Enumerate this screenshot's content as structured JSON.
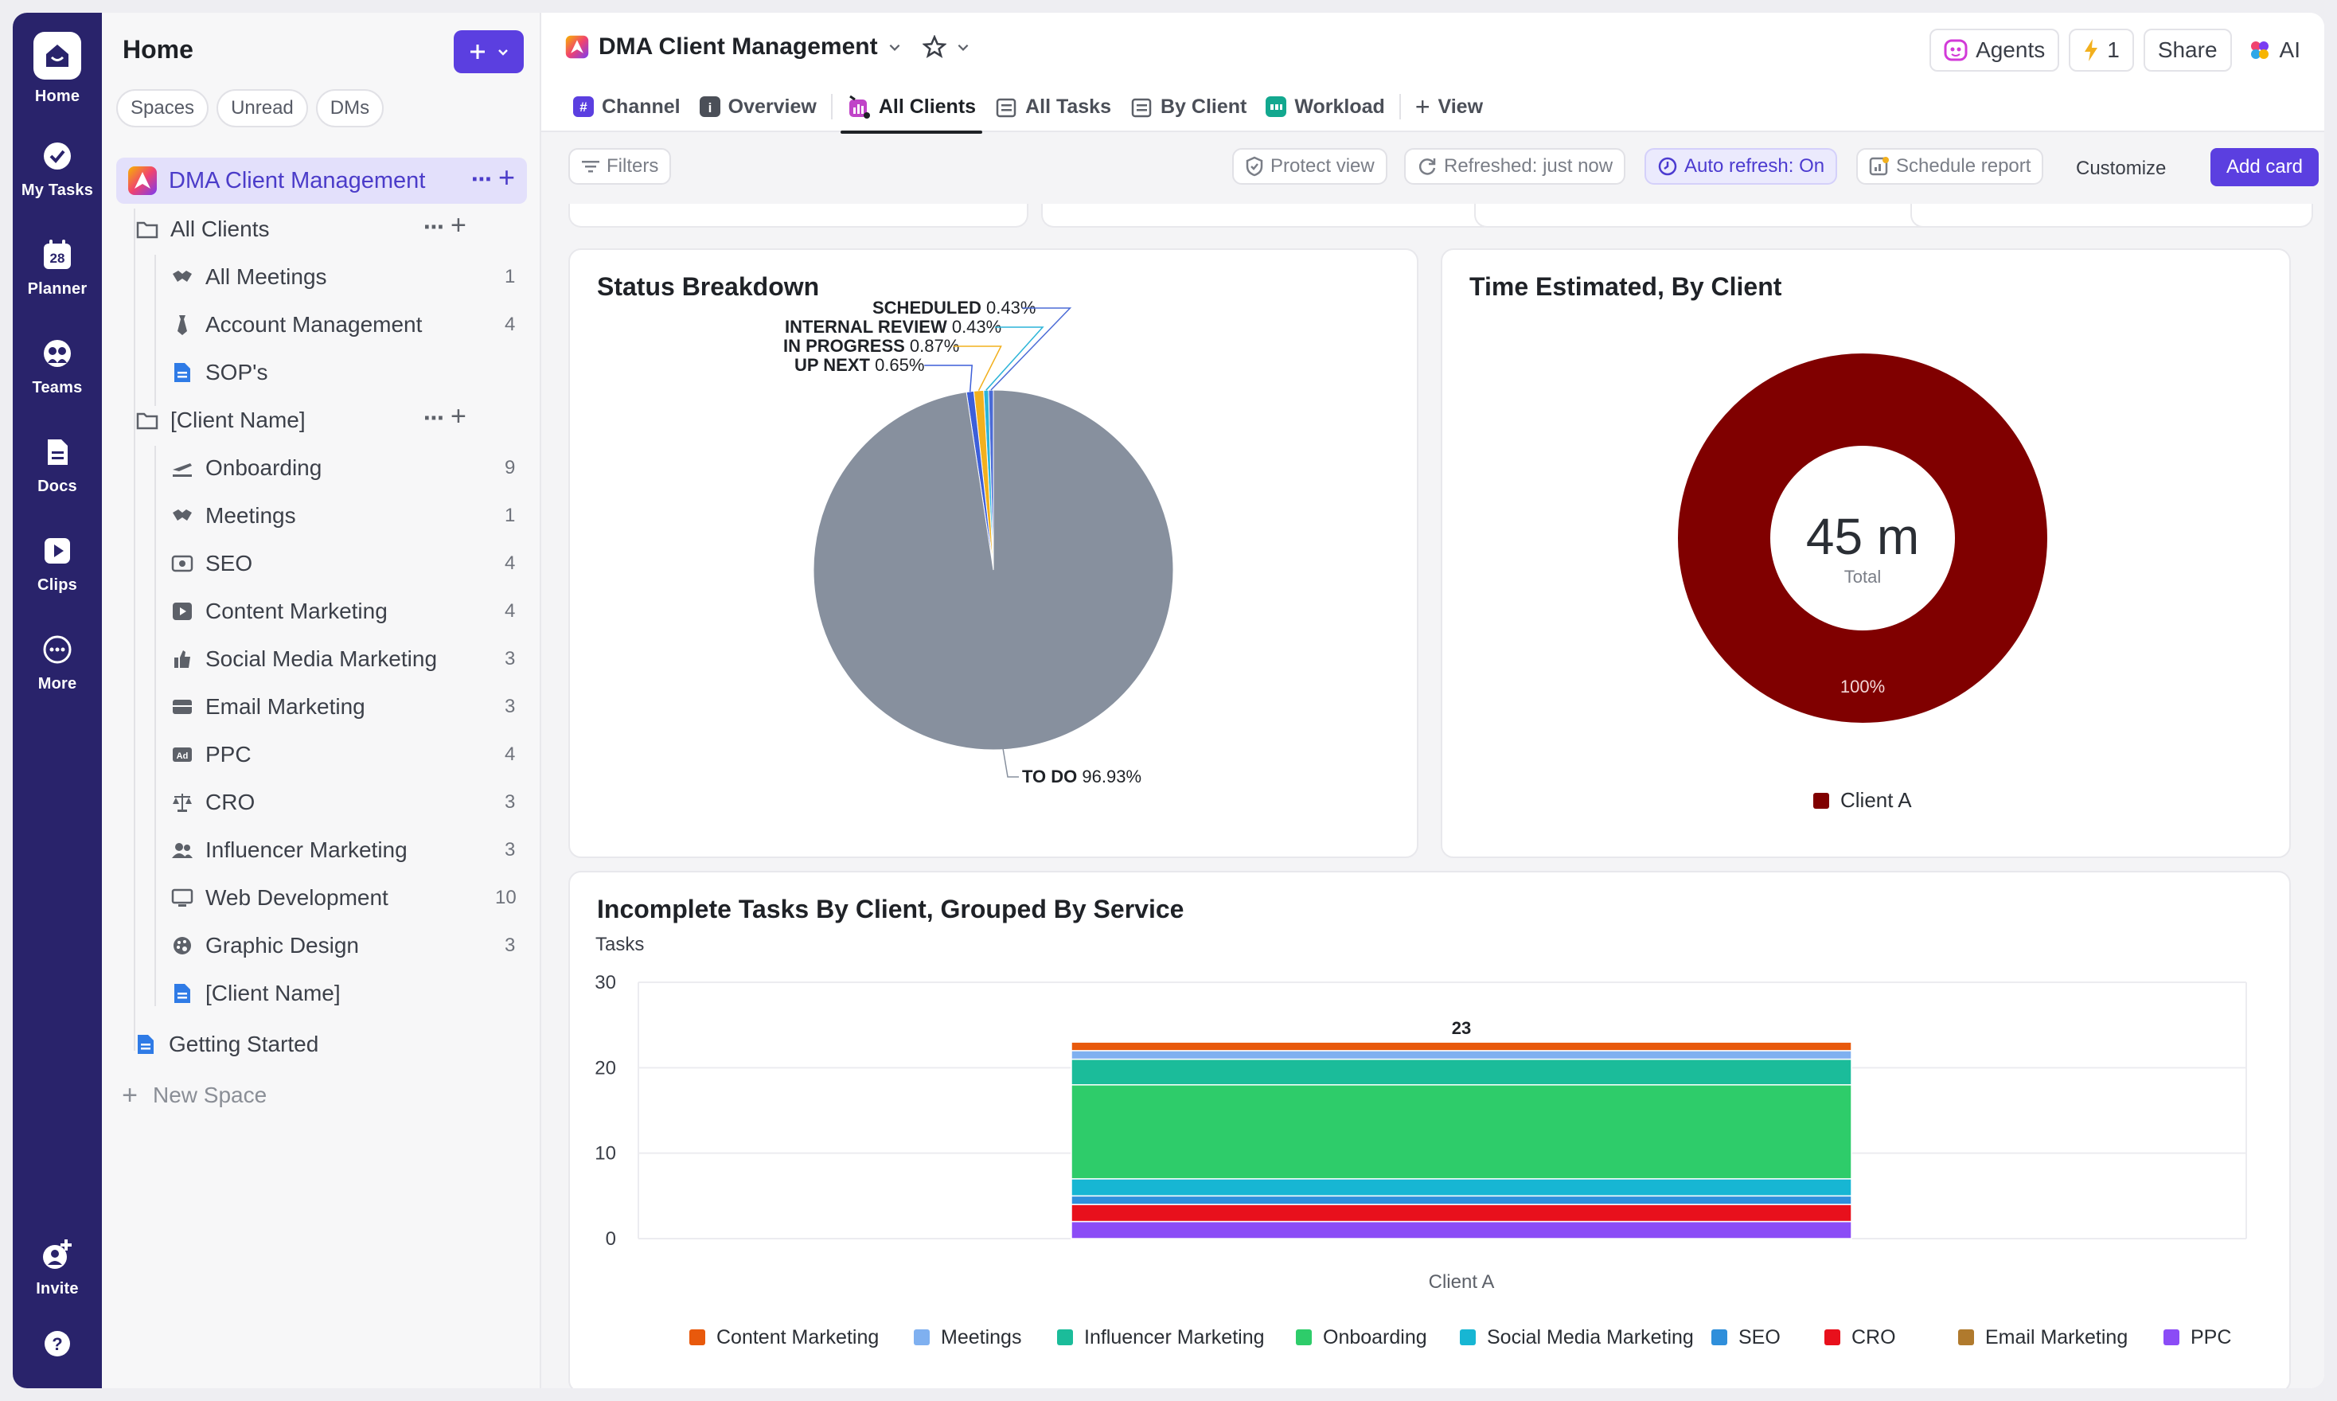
{
  "rail": {
    "items": [
      {
        "label": "Home",
        "icon": "home-icon"
      },
      {
        "label": "My Tasks",
        "icon": "check-circle-icon"
      },
      {
        "label": "Planner",
        "icon": "calendar-icon",
        "day": "28"
      },
      {
        "label": "Teams",
        "icon": "teams-icon"
      },
      {
        "label": "Docs",
        "icon": "doc-icon"
      },
      {
        "label": "Clips",
        "icon": "clip-icon"
      },
      {
        "label": "More",
        "icon": "more-icon"
      }
    ],
    "invite": "Invite"
  },
  "sidebar": {
    "title": "Home",
    "chips": [
      "Spaces",
      "Unread",
      "DMs"
    ],
    "space": "DMA Client Management",
    "folders": [
      {
        "name": "All Clients",
        "lists": [
          {
            "name": "All Meetings",
            "count": "1"
          },
          {
            "name": "Account Management",
            "count": "4"
          },
          {
            "name": "SOP's",
            "count": ""
          }
        ]
      },
      {
        "name": "[Client Name]",
        "lists": [
          {
            "name": "Onboarding",
            "count": "9"
          },
          {
            "name": "Meetings",
            "count": "1"
          },
          {
            "name": "SEO",
            "count": "4"
          },
          {
            "name": "Content Marketing",
            "count": "4"
          },
          {
            "name": "Social Media Marketing",
            "count": "3"
          },
          {
            "name": "Email Marketing",
            "count": "3"
          },
          {
            "name": "PPC",
            "count": "4"
          },
          {
            "name": "CRO",
            "count": "3"
          },
          {
            "name": "Influencer Marketing",
            "count": "3"
          },
          {
            "name": "Web Development",
            "count": "10"
          },
          {
            "name": "Graphic Design",
            "count": "3"
          },
          {
            "name": "[Client Name]",
            "count": ""
          }
        ]
      }
    ],
    "getting_started": "Getting Started",
    "new_space": "New Space"
  },
  "header": {
    "title": "DMA Client Management",
    "tabs": [
      "Channel",
      "Overview",
      "All Clients",
      "All Tasks",
      "By Client",
      "Workload"
    ],
    "view_label": "View",
    "agents": "Agents",
    "bolt_count": "1",
    "share": "Share",
    "ai": "AI"
  },
  "toolbar": {
    "filters": "Filters",
    "protect": "Protect view",
    "refreshed": "Refreshed: just now",
    "auto_refresh": "Auto refresh: On",
    "schedule": "Schedule report",
    "customize": "Customize",
    "add_card": "Add card"
  },
  "colors": {
    "accent": "#5b3fe0",
    "rail": "#29236b",
    "pie_todo": "#87909e",
    "donut": "#800000"
  },
  "chart_data": [
    {
      "type": "pie",
      "title": "Status Breakdown",
      "slices": [
        {
          "label": "SCHEDULED",
          "pct": "0.43%",
          "value": 0.43,
          "color": "#4b6bd6"
        },
        {
          "label": "INTERNAL REVIEW",
          "pct": "0.43%",
          "value": 0.43,
          "color": "#2cb4d8"
        },
        {
          "label": "IN PROGRESS",
          "pct": "0.87%",
          "value": 0.87,
          "color": "#f2b01e"
        },
        {
          "label": "UP NEXT",
          "pct": "0.65%",
          "value": 0.65,
          "color": "#3d5fd9"
        },
        {
          "label": "TO DO",
          "pct": "96.93%",
          "value": 96.93,
          "color": "#87909e"
        }
      ]
    },
    {
      "type": "donut",
      "title": "Time Estimated, By Client",
      "center_value": "45 m",
      "center_label": "Total",
      "slice_label": "100%",
      "legend": [
        {
          "name": "Client A",
          "value": 100,
          "color": "#800000"
        }
      ]
    },
    {
      "type": "bar",
      "stacked": true,
      "title": "Incomplete Tasks By Client, Grouped By Service",
      "ylabel": "Tasks",
      "xlabel": "",
      "categories": [
        "Client A"
      ],
      "ylim": [
        0,
        30
      ],
      "yticks": [
        0,
        10,
        20,
        30
      ],
      "total_label": "23",
      "series": [
        {
          "name": "PPC",
          "color": "#8b4cf6",
          "values": [
            2
          ]
        },
        {
          "name": "CRO",
          "color": "#e8101c",
          "values": [
            2
          ]
        },
        {
          "name": "Email Marketing",
          "color": "#b07a2d",
          "values": [
            0
          ]
        },
        {
          "name": "SEO",
          "color": "#2f8fdb",
          "values": [
            1
          ]
        },
        {
          "name": "Social Media Marketing",
          "color": "#17b6d3",
          "values": [
            2
          ]
        },
        {
          "name": "Onboarding",
          "color": "#2ecc6a",
          "values": [
            11
          ]
        },
        {
          "name": "Influencer Marketing",
          "color": "#1bbc9a",
          "values": [
            3
          ]
        },
        {
          "name": "Meetings",
          "color": "#7fb0f0",
          "values": [
            1
          ]
        },
        {
          "name": "Content Marketing",
          "color": "#e8590c",
          "values": [
            1
          ]
        }
      ],
      "legend_order": [
        "Content Marketing",
        "Meetings",
        "Influencer Marketing",
        "Onboarding",
        "Social Media Marketing",
        "SEO",
        "CRO",
        "Email Marketing",
        "PPC"
      ]
    }
  ]
}
